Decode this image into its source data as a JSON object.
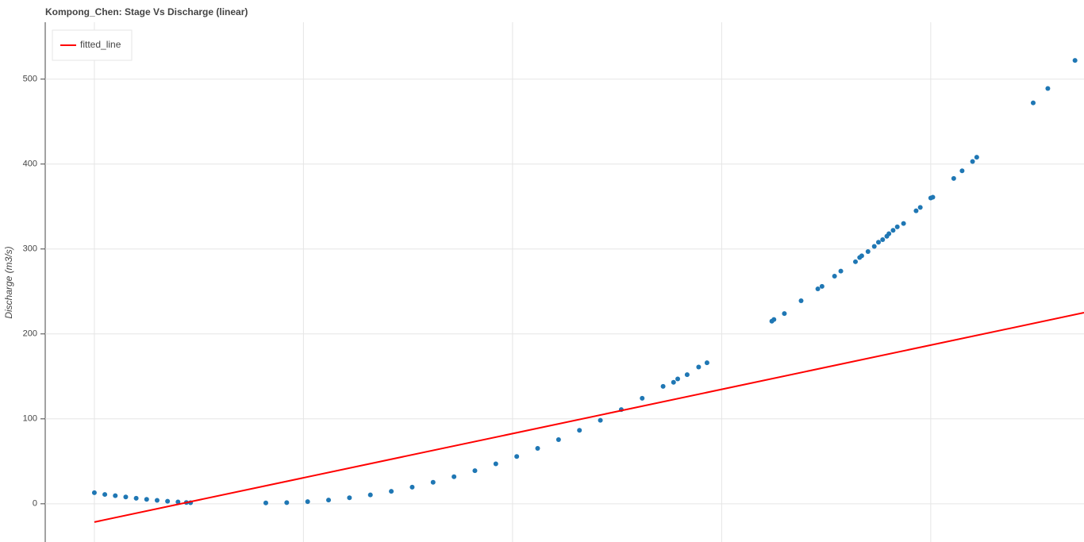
{
  "chart_data": {
    "type": "scatter",
    "title": "Kompong_Chen: Stage Vs Discharge (linear)",
    "ylabel": "Discharge (m3/s)",
    "xlim": [
      -0.235,
      4.733
    ],
    "xticks": [
      0,
      1,
      2,
      3,
      4
    ],
    "ylim": [
      -45,
      567
    ],
    "yticks": [
      0,
      100,
      200,
      300,
      400,
      500
    ],
    "grid": true,
    "legend": "top-left",
    "series": [
      {
        "type": "scatter",
        "color": "#1f77b4",
        "x": [
          0,
          0.05,
          0.1,
          0.15,
          0.2,
          0.25,
          0.3,
          0.35,
          0.4,
          0.44,
          0.46,
          0.82,
          0.92,
          1.02,
          1.12,
          1.22,
          1.32,
          1.42,
          1.52,
          1.62,
          1.72,
          1.82,
          1.92,
          2.02,
          2.12,
          2.22,
          2.32,
          2.42,
          2.52,
          2.62,
          2.72,
          2.77,
          2.79,
          2.835,
          2.89,
          2.93,
          3.24,
          3.25,
          3.3,
          3.38,
          3.46,
          3.48,
          3.54,
          3.57,
          3.64,
          3.66,
          3.67,
          3.7,
          3.73,
          3.75,
          3.77,
          3.79,
          3.8,
          3.82,
          3.84,
          3.87,
          3.93,
          3.95,
          4.0,
          4.01,
          4.11,
          4.15,
          4.2,
          4.22,
          4.49,
          4.56,
          4.69
        ],
        "values": [
          13,
          11,
          9.5,
          8,
          6.5,
          5.2,
          4,
          3,
          2.2,
          1.5,
          1.2,
          1,
          1.4,
          2.5,
          4.4,
          7.1,
          10.5,
          14.7,
          19.6,
          25.3,
          31.8,
          39,
          47,
          55.7,
          65.2,
          75.5,
          86.5,
          98.3,
          110.9,
          124.2,
          138.2,
          143,
          147,
          152,
          161,
          166,
          215,
          217,
          224,
          239,
          253,
          256,
          268,
          274,
          285,
          290,
          292,
          297,
          303,
          308,
          311,
          315,
          318,
          322,
          326,
          330,
          345,
          349,
          360,
          361,
          383,
          392,
          403,
          408,
          472,
          489,
          522
        ]
      },
      {
        "type": "line",
        "name": "fitted_line",
        "color": "#ff0000",
        "x": [
          0,
          4.733
        ],
        "values": [
          -21.5,
          225
        ]
      }
    ]
  }
}
